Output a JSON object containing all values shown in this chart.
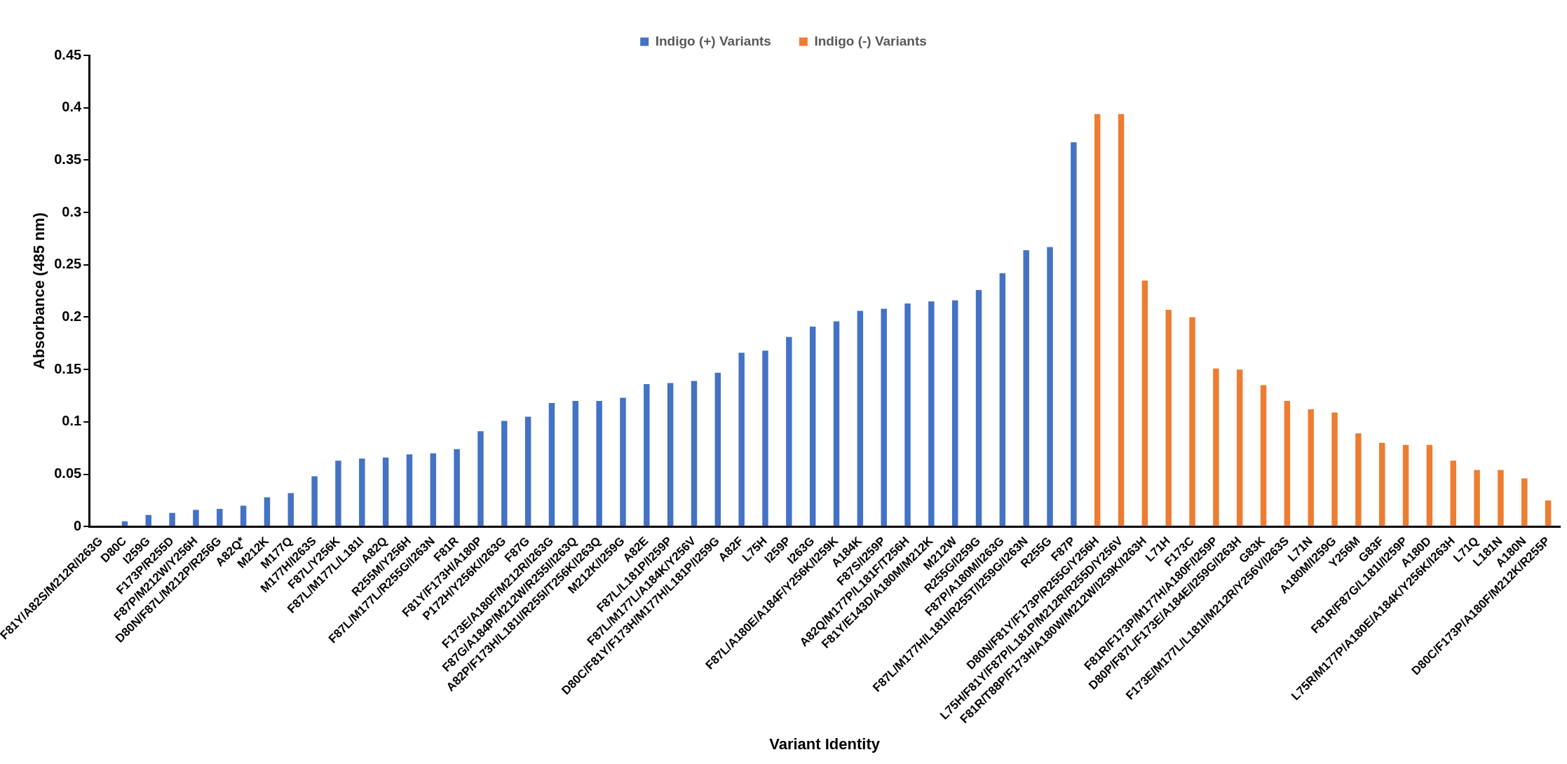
{
  "chart_data": {
    "type": "bar",
    "xlabel": "Variant Identity",
    "ylabel": "Absorbance (485 nm)",
    "categories": [
      "F81Y/A82S/M212R/I263G",
      "D80C",
      "I259G",
      "F173P/R255D",
      "F87P/M212W/Y256H",
      "D80N/F87L/M212P/R256G",
      "A82Q*",
      "M212K",
      "M177Q",
      "M177H/I263S",
      "F87L/Y256K",
      "F87L/M177L/L181I",
      "A82Q",
      "R255M/Y256H",
      "F87L/M177L/R255G/I263N",
      "F81R",
      "F81Y/F173H/A180P",
      "P172H/Y256K/I263G",
      "F87G",
      "F173E/A180F/M212R/I263G",
      "F87G/A184P/M212W/R255I/I263Q",
      "A82P/F173H/L181I/R255I/T256K/I263Q",
      "M212K/I259G",
      "A82E",
      "F87L/L181P/I259P",
      "F87L/M177L/A184K/Y256V",
      "D80C/F81Y/F173H/M177H/L181P/I259G",
      "A82F",
      "L75H",
      "I259P",
      "I263G",
      "F87L/A180E/A184F/Y256K/I259K",
      "A184K",
      "F87S/I259P",
      "A82Q/M177P/L181F/T256H",
      "F81Y/E143D/A180M/M212K",
      "M212W",
      "R255G/I259G",
      "F87P/A180M/I263G",
      "F87L/M177H/L181I/R255T/I259G/I263N",
      "R255G",
      "F87P",
      "D80N/F81Y/F173P/R255G/Y256H",
      "L75H/F81Y/F87P/L181P/M212R/R255D/Y256V",
      "F81R/T88P/F173H/A180W/M212W/I259K/I263H",
      "L71H",
      "F173C",
      "F81R/F173P/M177H/A180F/I259P",
      "D80P/F87L/F173E/A184E/I259G/I263H",
      "G83K",
      "F173E/M177L/L181I/M212R/Y256V/I263S",
      "L71N",
      "A180M/I259G",
      "Y256M",
      "G83F",
      "F81R/F87G/L181I/I259P",
      "A180D",
      "L75R/M177P/A180E/A184K/Y256K/I263H",
      "L71Q",
      "L181N",
      "A180N",
      "D80C/F173P/A180F/M212K/R255P"
    ],
    "series": [
      {
        "name": "Indigo (+) Variants",
        "color": "#4472c4",
        "values": [
          0,
          0.005,
          0.011,
          0.013,
          0.016,
          0.017,
          0.02,
          0.028,
          0.032,
          0.048,
          0.063,
          0.065,
          0.066,
          0.069,
          0.07,
          0.074,
          0.091,
          0.101,
          0.105,
          0.118,
          0.12,
          0.12,
          0.123,
          0.136,
          0.137,
          0.139,
          0.147,
          0.166,
          0.168,
          0.181,
          0.191,
          0.196,
          0.206,
          0.208,
          0.213,
          0.215,
          0.216,
          0.226,
          0.242,
          0.264,
          0.267,
          0.367,
          null,
          null,
          null,
          null,
          null,
          null,
          null,
          null,
          null,
          null,
          null,
          null,
          null,
          null,
          null,
          null,
          null,
          null,
          null,
          null
        ]
      },
      {
        "name": "Indigo (-) Variants",
        "color": "#ed7d31",
        "values": [
          null,
          null,
          null,
          null,
          null,
          null,
          null,
          null,
          null,
          null,
          null,
          null,
          null,
          null,
          null,
          null,
          null,
          null,
          null,
          null,
          null,
          null,
          null,
          null,
          null,
          null,
          null,
          null,
          null,
          null,
          null,
          null,
          null,
          null,
          null,
          null,
          null,
          null,
          null,
          null,
          null,
          null,
          0.394,
          0.394,
          0.235,
          0.207,
          0.2,
          0.151,
          0.15,
          0.135,
          0.12,
          0.112,
          0.109,
          0.089,
          0.08,
          0.078,
          0.078,
          0.063,
          0.054,
          0.054,
          0.046,
          0.025
        ]
      }
    ],
    "ylim": [
      0,
      0.45
    ],
    "yticks": [
      0,
      0.05,
      0.1,
      0.15,
      0.2,
      0.25,
      0.3,
      0.35,
      0.4,
      0.45
    ],
    "grid": false,
    "legend": "top"
  }
}
